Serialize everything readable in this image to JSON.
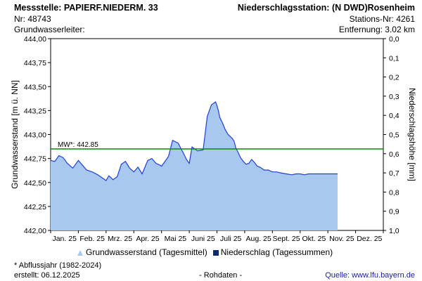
{
  "header": {
    "station_line": "Messstelle: PAPIERF.NIEDERM. 33",
    "nr_line": "Nr: 48743",
    "aquifer_line": "Grundwasserleiter:",
    "precip_station_line": "Niederschlagsstation: (N DWD)Rosenheim",
    "precip_nr_line": "Stations-Nr: 4261",
    "distance_line": "Entfernung: 3.02 km"
  },
  "legend": {
    "gw_label": "Grundwasserstand (Tagesmittel)",
    "precip_label": "Niederschlag (Tagessummen)"
  },
  "footer": {
    "note": "* Abflussjahr (1982-2024)",
    "created": "erstellt:  06.12.2025",
    "raw": "- Rohdaten -",
    "source": "Quelle: www.lfu.bayern.de"
  },
  "colors": {
    "fill": "#a8c8ef",
    "line": "#1f3fd6",
    "mean": "#0a8a0a",
    "precip": "#0a2b6e"
  },
  "chart_data": {
    "type": "area",
    "ylabel": "Grundwasserstand [m ü. NN]",
    "y2label": "Niederschlagshöhe [mm]",
    "ylim": [
      442.0,
      444.0
    ],
    "y2lim": [
      0.0,
      1.0
    ],
    "y_ticks": [
      "442,00",
      "442,25",
      "442,50",
      "442,75",
      "443,00",
      "443,25",
      "443,50",
      "443,75",
      "444,00"
    ],
    "y2_ticks": [
      "0,0",
      "0,1",
      "0,2",
      "0,3",
      "0,4",
      "0,5",
      "0,6",
      "0,7",
      "0,8",
      "0,9",
      "1,0"
    ],
    "x_ticks": [
      "Jan. 25",
      "Feb. 25",
      "Mrz. 25",
      "Apr. 25",
      "Mai 25",
      "Juni 25",
      "Juli 25",
      "Aug. 25",
      "Sept. 25",
      "Okt. 25",
      "Nov. 25",
      "Dez. 25"
    ],
    "mean_label": "MW*: 442.85",
    "mean_value": 442.85,
    "grid": false,
    "series": [
      {
        "values_x_month": [
          0.0,
          0.15,
          0.3,
          0.45,
          0.6,
          0.8,
          1.0,
          1.15,
          1.3,
          1.5,
          1.7,
          1.9,
          2.0,
          2.1,
          2.25,
          2.4,
          2.55,
          2.7,
          2.85,
          3.0,
          3.15,
          3.3,
          3.5,
          3.65,
          3.8,
          3.95,
          4.0,
          4.1,
          4.25,
          4.4,
          4.6,
          4.8,
          4.9,
          5.0,
          5.1,
          5.3,
          5.5,
          5.65,
          5.8,
          5.95,
          6.0,
          6.05,
          6.1,
          6.2,
          6.3,
          6.4,
          6.55,
          6.62,
          6.68,
          6.75,
          6.85,
          6.95,
          7.05,
          7.15,
          7.25,
          7.35,
          7.45,
          7.55,
          7.7,
          7.85,
          8.0,
          8.15,
          8.3,
          8.5,
          8.7,
          8.85,
          9.0,
          9.15,
          9.3,
          9.5,
          9.7,
          9.9,
          10.1,
          10.25,
          10.35
        ],
        "values": [
          442.73,
          442.72,
          442.78,
          442.76,
          442.7,
          442.65,
          442.73,
          442.68,
          442.63,
          442.61,
          442.58,
          442.54,
          442.52,
          442.57,
          442.53,
          442.56,
          442.69,
          442.72,
          442.65,
          442.61,
          442.66,
          442.59,
          442.73,
          442.75,
          442.7,
          442.68,
          442.67,
          442.71,
          442.77,
          442.94,
          442.91,
          442.8,
          442.74,
          442.7,
          442.87,
          442.83,
          442.84,
          443.19,
          443.31,
          443.34,
          443.3,
          443.25,
          443.18,
          443.12,
          443.05,
          443.0,
          442.96,
          442.93,
          442.86,
          442.82,
          442.76,
          442.72,
          442.69,
          442.7,
          442.74,
          442.71,
          442.67,
          442.66,
          442.63,
          442.63,
          442.61,
          442.61,
          442.6,
          442.59,
          442.58,
          442.59,
          442.59,
          442.58,
          442.59,
          442.59,
          442.59,
          442.59,
          442.59,
          442.59,
          442.59
        ]
      }
    ]
  }
}
